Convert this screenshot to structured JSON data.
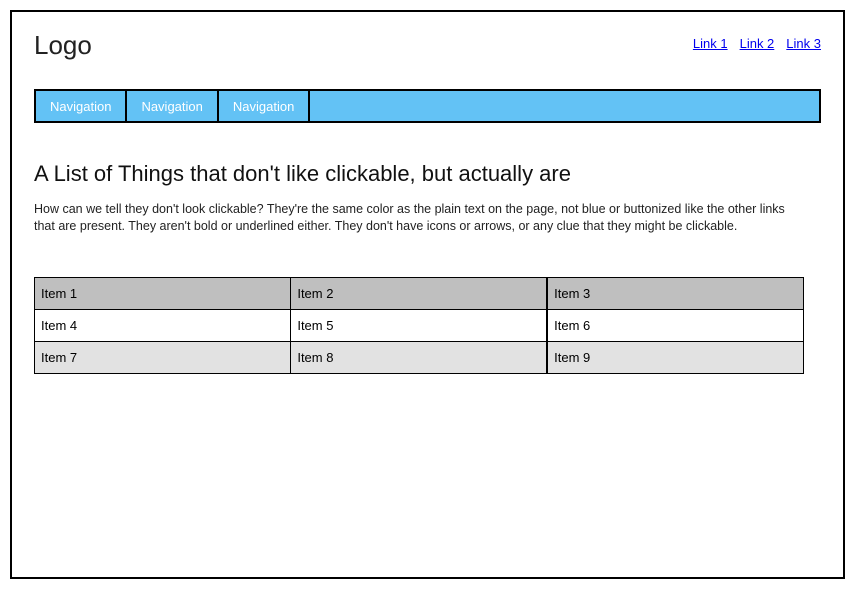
{
  "header": {
    "logo": "Logo",
    "links": [
      "Link 1",
      "Link 2",
      "Link 3"
    ]
  },
  "nav": {
    "tabs": [
      "Navigation",
      "Navigation",
      "Navigation"
    ]
  },
  "main": {
    "heading": "A List of Things that don't like clickable, but actually are",
    "body": "How can we tell they don't look clickable? They're the same color as the plain text on the page, not blue or buttonized like the other links that are present. They aren't bold or underlined either. They don't have icons or arrows, or any clue that they might be clickable."
  },
  "grid": {
    "rows": [
      [
        "Item 1",
        "Item 2",
        "Item 3"
      ],
      [
        "Item 4",
        "Item 5",
        "Item 6"
      ],
      [
        "Item 7",
        "Item 8",
        "Item 9"
      ]
    ]
  },
  "colors": {
    "nav_bg": "#63c2f5",
    "link": "#0000EE",
    "row1_bg": "#bfbfbf",
    "row2_bg": "#ffffff",
    "row3_bg": "#e2e2e2"
  }
}
